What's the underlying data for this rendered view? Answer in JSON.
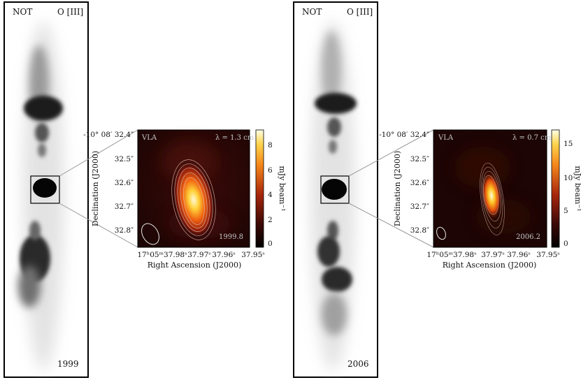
{
  "panels": [
    {
      "telescope": "NOT",
      "filter": "O [III]",
      "year": "1999",
      "inset": {
        "instrument": "VLA",
        "wavelength": "λ = 1.3 cm",
        "epoch": "1999.8",
        "xlabel": "Right Ascension (J2000)",
        "ylabel": "Declination (J2000)",
        "colorbar_label": "mJy beam⁻¹",
        "dec_ticks": [
          "-10° 08′ 32.4″",
          "32.5″",
          "32.6″",
          "32.7″",
          "32.8″"
        ],
        "ra_ticks": [
          "17ʰ05ᵐ37.98ˢ",
          "37.97ˢ",
          "37.96ˢ",
          "37.95ˢ"
        ],
        "colorbar_ticks": [
          "8",
          "6",
          "4",
          "2",
          "0"
        ]
      }
    },
    {
      "telescope": "NOT",
      "filter": "O [III]",
      "year": "2006",
      "inset": {
        "instrument": "VLA",
        "wavelength": "λ = 0.7 cm",
        "epoch": "2006.2",
        "xlabel": "Right Ascension (J2000)",
        "ylabel": "Declination (J2000)",
        "colorbar_label": "mJy beam⁻¹",
        "dec_ticks": [
          "-10° 08′ 32.4″",
          "32.5″",
          "32.6″",
          "32.7″",
          "32.8″"
        ],
        "ra_ticks": [
          "17ʰ05ᵐ37.98ˢ",
          "37.97ˢ",
          "37.96ˢ",
          "37.95ˢ"
        ],
        "colorbar_ticks": [
          "15",
          "10",
          "5",
          "0"
        ]
      }
    }
  ]
}
